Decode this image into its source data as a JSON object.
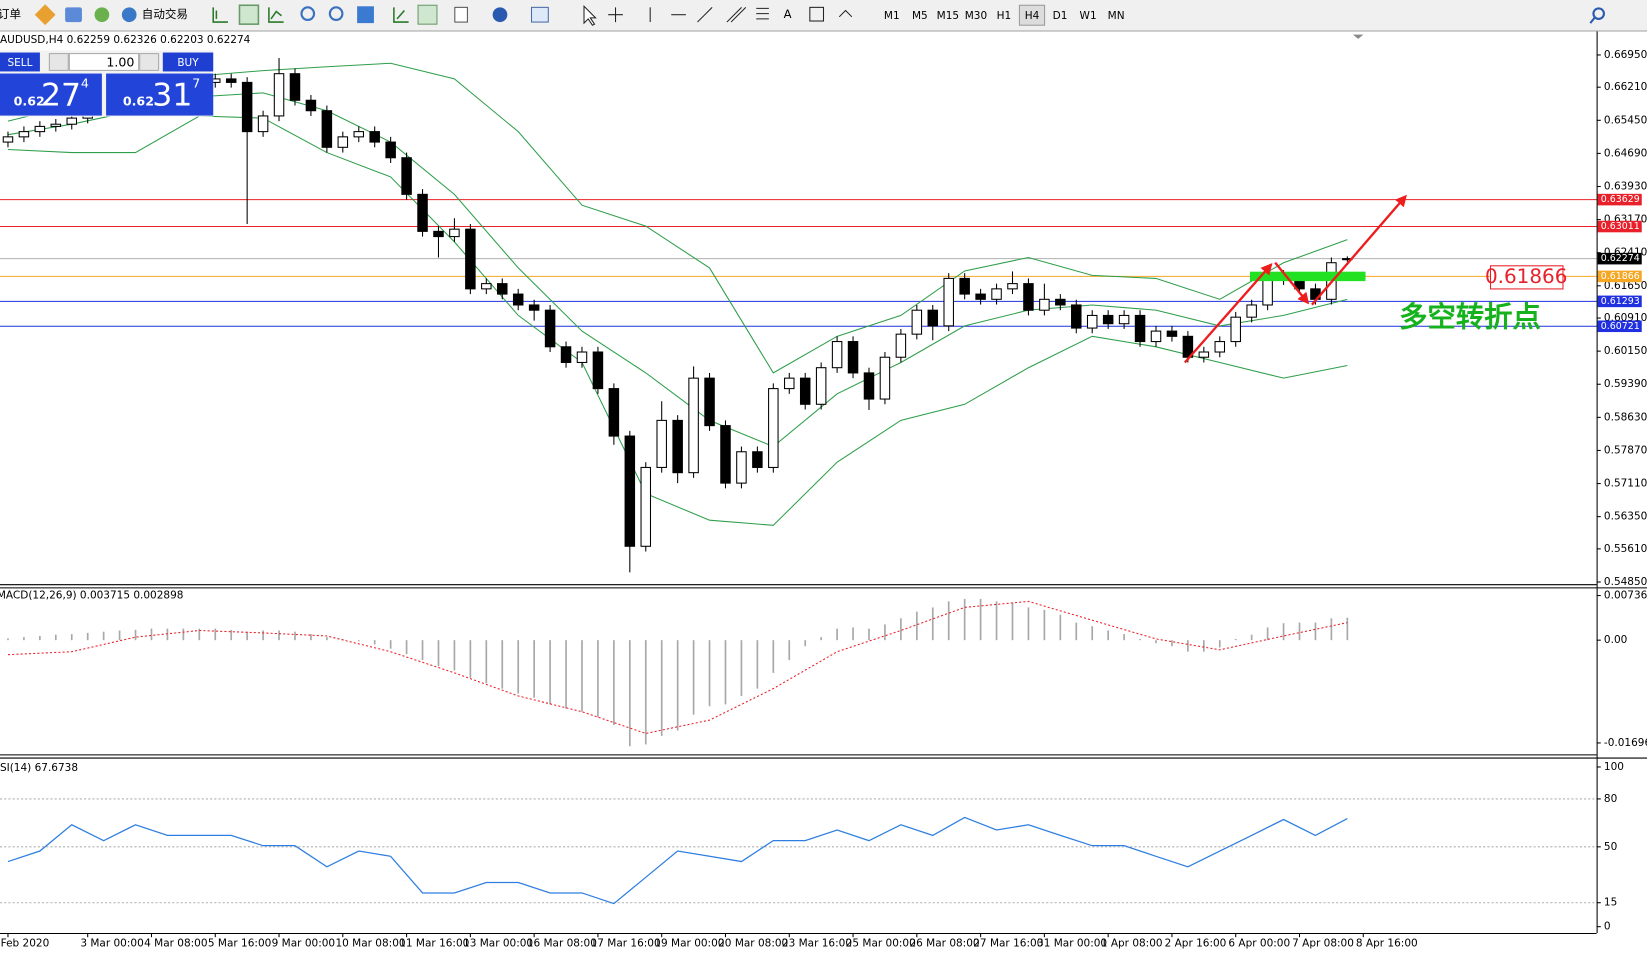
{
  "toolbar": {
    "order_button": "订单",
    "autotrade_button": "自动交易",
    "text_tool": "A",
    "timeframes": [
      "M1",
      "M5",
      "M15",
      "M30",
      "H1",
      "H4",
      "D1",
      "W1",
      "MN"
    ],
    "active_timeframe": "H4"
  },
  "one_click": {
    "sell": "SELL",
    "buy": "BUY",
    "lot": "1.00",
    "sell_price": {
      "big": "0.62",
      "pips": "27",
      "fraction": "4"
    },
    "buy_price": {
      "big": "0.62",
      "pips": "31",
      "fraction": "7"
    }
  },
  "chart_data": [
    {
      "type": "candlestick",
      "title": "AUDUSD,H4  0.62259 0.62326 0.62203 0.62274",
      "xlim": [
        -0.5,
        99.5
      ],
      "ylim": [
        0.548,
        0.6744
      ],
      "xticks": [
        {
          "value": 0,
          "label": "Feb 2020"
        },
        {
          "value": 5,
          "label": "3 Mar 00:00"
        },
        {
          "value": 9,
          "label": "4 Mar 08:00"
        },
        {
          "value": 13,
          "label": "5 Mar 16:00"
        },
        {
          "value": 17,
          "label": "9 Mar 00:00"
        },
        {
          "value": 21,
          "label": "10 Mar 08:00"
        },
        {
          "value": 25,
          "label": "11 Mar 16:00"
        },
        {
          "value": 29,
          "label": "13 Mar 00:00"
        },
        {
          "value": 33,
          "label": "16 Mar 08:00"
        },
        {
          "value": 37,
          "label": "17 Mar 16:00"
        },
        {
          "value": 41,
          "label": "19 Mar 00:00"
        },
        {
          "value": 45,
          "label": "20 Mar 08:00"
        },
        {
          "value": 49,
          "label": "23 Mar 16:00"
        },
        {
          "value": 53,
          "label": "25 Mar 00:00"
        },
        {
          "value": 57,
          "label": "26 Mar 08:00"
        },
        {
          "value": 61,
          "label": "27 Mar 16:00"
        },
        {
          "value": 65,
          "label": "31 Mar 00:00"
        },
        {
          "value": 69,
          "label": "1 Apr 08:00"
        },
        {
          "value": 73,
          "label": "2 Apr 16:00"
        },
        {
          "value": 77,
          "label": "6 Apr 00:00"
        },
        {
          "value": 81,
          "label": "7 Apr 08:00"
        },
        {
          "value": 85,
          "label": "8 Apr 16:00"
        }
      ],
      "yticks": [
        {
          "value": 0.6695,
          "label": "0.66950"
        },
        {
          "value": 0.6621,
          "label": "0.66210"
        },
        {
          "value": 0.6545,
          "label": "0.65450"
        },
        {
          "value": 0.6469,
          "label": "0.64690"
        },
        {
          "value": 0.6393,
          "label": "0.63930"
        },
        {
          "value": 0.6317,
          "label": "0.63170"
        },
        {
          "value": 0.6241,
          "label": "0.62410"
        },
        {
          "value": 0.6165,
          "label": "0.61650"
        },
        {
          "value": 0.6091,
          "label": "0.60910"
        },
        {
          "value": 0.6015,
          "label": "0.60150"
        },
        {
          "value": 0.5939,
          "label": "0.59390"
        },
        {
          "value": 0.5863,
          "label": "0.58630"
        },
        {
          "value": 0.5787,
          "label": "0.57870"
        },
        {
          "value": 0.5711,
          "label": "0.57110"
        },
        {
          "value": 0.5635,
          "label": "0.56350"
        },
        {
          "value": 0.5561,
          "label": "0.55610"
        },
        {
          "value": 0.5485,
          "label": "0.54850"
        }
      ],
      "open": [
        0.6495,
        0.6507,
        0.6519,
        0.6531,
        0.6536,
        0.655,
        0.6567,
        0.6579,
        0.6591,
        0.6603,
        0.6608,
        0.6616,
        0.6623,
        0.6632,
        0.664,
        0.6632,
        0.6519,
        0.6555,
        0.6652,
        0.6591,
        0.6567,
        0.6483,
        0.6507,
        0.6519,
        0.6495,
        0.6459,
        0.6375,
        0.629,
        0.6278,
        0.6295,
        0.6158,
        0.617,
        0.6146,
        0.6121,
        0.6109,
        0.6025,
        0.5989,
        0.6013,
        0.5929,
        0.582,
        0.5567,
        0.5748,
        0.5856,
        0.5736,
        0.5953,
        0.5844,
        0.5712,
        0.5784,
        0.5748,
        0.5929,
        0.5953,
        0.5893,
        0.5977,
        0.6037,
        0.5965,
        0.5905,
        0.6001,
        0.6054,
        0.6109,
        0.6073,
        0.6182,
        0.6146,
        0.6134,
        0.6158,
        0.617,
        0.6109,
        0.6134,
        0.6121,
        0.6068,
        0.6097,
        0.6078,
        0.6097,
        0.6037,
        0.6061,
        0.6049,
        0.6001,
        0.6013,
        0.6037,
        0.6093,
        0.6121,
        0.6189,
        0.6179,
        0.6158,
        0.6134,
        0.62259
      ],
      "high": [
        0.6519,
        0.6531,
        0.6543,
        0.6548,
        0.6562,
        0.6579,
        0.6591,
        0.6603,
        0.6615,
        0.662,
        0.6628,
        0.6635,
        0.6644,
        0.6652,
        0.6652,
        0.6644,
        0.6567,
        0.6688,
        0.6664,
        0.6603,
        0.6579,
        0.6519,
        0.6531,
        0.6531,
        0.6507,
        0.6471,
        0.6387,
        0.6302,
        0.632,
        0.6307,
        0.6182,
        0.6182,
        0.6158,
        0.6133,
        0.6121,
        0.6037,
        0.6025,
        0.6025,
        0.5941,
        0.5832,
        0.576,
        0.59,
        0.5868,
        0.598,
        0.5965,
        0.5856,
        0.5796,
        0.5796,
        0.5941,
        0.5965,
        0.5965,
        0.5989,
        0.6049,
        0.6049,
        0.5977,
        0.6013,
        0.6066,
        0.6121,
        0.6121,
        0.6194,
        0.6194,
        0.6158,
        0.617,
        0.6198,
        0.6182,
        0.617,
        0.6146,
        0.6133,
        0.6109,
        0.6109,
        0.6109,
        0.6109,
        0.6073,
        0.6073,
        0.6061,
        0.6025,
        0.6049,
        0.6105,
        0.6133,
        0.6201,
        0.6201,
        0.6191,
        0.617,
        0.623,
        0.62326
      ],
      "low": [
        0.6483,
        0.6495,
        0.6507,
        0.6519,
        0.6524,
        0.6538,
        0.6555,
        0.6567,
        0.6579,
        0.6591,
        0.6596,
        0.6604,
        0.6611,
        0.662,
        0.662,
        0.6307,
        0.6507,
        0.6543,
        0.6579,
        0.6555,
        0.6471,
        0.6471,
        0.6495,
        0.6483,
        0.6447,
        0.6363,
        0.6278,
        0.623,
        0.6266,
        0.6146,
        0.6146,
        0.6134,
        0.6109,
        0.6085,
        0.6013,
        0.5977,
        0.5977,
        0.5917,
        0.58,
        0.5507,
        0.5555,
        0.5736,
        0.5712,
        0.5724,
        0.5832,
        0.57,
        0.57,
        0.5736,
        0.5736,
        0.5917,
        0.5881,
        0.5881,
        0.5965,
        0.5953,
        0.588,
        0.5893,
        0.5989,
        0.6042,
        0.604,
        0.6061,
        0.6134,
        0.6122,
        0.6122,
        0.6146,
        0.6097,
        0.6097,
        0.6109,
        0.6056,
        0.6056,
        0.6066,
        0.6066,
        0.6025,
        0.6025,
        0.6037,
        0.5989,
        0.5989,
        0.6001,
        0.6025,
        0.6081,
        0.6109,
        0.6167,
        0.6146,
        0.6122,
        0.6122,
        0.62203
      ],
      "close": [
        0.6507,
        0.6519,
        0.6531,
        0.6536,
        0.655,
        0.6567,
        0.6579,
        0.6591,
        0.6603,
        0.6608,
        0.6616,
        0.6623,
        0.6632,
        0.664,
        0.6632,
        0.6519,
        0.6555,
        0.6652,
        0.6591,
        0.6567,
        0.6483,
        0.6507,
        0.6519,
        0.6495,
        0.6459,
        0.6375,
        0.629,
        0.6278,
        0.6295,
        0.6158,
        0.617,
        0.6146,
        0.6121,
        0.6109,
        0.6025,
        0.5989,
        0.6013,
        0.5929,
        0.582,
        0.5567,
        0.5748,
        0.5856,
        0.5736,
        0.5953,
        0.5844,
        0.5712,
        0.5784,
        0.5748,
        0.5929,
        0.5953,
        0.5893,
        0.5977,
        0.6037,
        0.5965,
        0.5905,
        0.6001,
        0.6054,
        0.6109,
        0.6073,
        0.6182,
        0.6146,
        0.6134,
        0.6158,
        0.617,
        0.6109,
        0.6134,
        0.6121,
        0.6068,
        0.6097,
        0.6078,
        0.6097,
        0.6037,
        0.6061,
        0.6049,
        0.6001,
        0.6013,
        0.6037,
        0.6093,
        0.6121,
        0.6189,
        0.6179,
        0.6158,
        0.6134,
        0.6218,
        0.62274
      ],
      "bands": {
        "color": "#2e9e4a",
        "x": [
          0,
          4,
          8,
          12,
          16,
          20,
          24,
          28,
          32,
          36,
          40,
          44,
          48,
          52,
          56,
          60,
          64,
          68,
          72,
          76,
          80,
          84
        ],
        "upper": [
          0.6543,
          0.6579,
          0.6615,
          0.6647,
          0.6659,
          0.6668,
          0.6676,
          0.664,
          0.6519,
          0.635,
          0.6302,
          0.6206,
          0.5965,
          0.6049,
          0.6097,
          0.6199,
          0.623,
          0.6189,
          0.6182,
          0.6134,
          0.6218,
          0.6271
        ],
        "middle": [
          0.6512,
          0.6536,
          0.6567,
          0.6599,
          0.6608,
          0.6567,
          0.6495,
          0.6375,
          0.6206,
          0.6061,
          0.5965,
          0.5856,
          0.5796,
          0.5917,
          0.5989,
          0.6073,
          0.6109,
          0.6121,
          0.6109,
          0.6073,
          0.6097,
          0.6134
        ],
        "lower": [
          0.6478,
          0.6471,
          0.6471,
          0.6555,
          0.655,
          0.6471,
          0.6415,
          0.6266,
          0.6097,
          0.5989,
          0.5688,
          0.5627,
          0.5615,
          0.576,
          0.5856,
          0.5893,
          0.5977,
          0.6049,
          0.6025,
          0.5989,
          0.5953,
          0.5982
        ]
      },
      "hlines": [
        {
          "value": 0.63629,
          "color": "#e8202a"
        },
        {
          "value": 0.63011,
          "color": "#e8202a"
        },
        {
          "value": 0.62274,
          "color": "#b0b0b0"
        },
        {
          "value": 0.61866,
          "color": "#f5a623"
        },
        {
          "value": 0.61293,
          "color": "#2030e0"
        },
        {
          "value": 0.60721,
          "color": "#2030e0"
        }
      ],
      "annotation": {
        "price_line": 3,
        "text": "多空转折点",
        "color": "#16b21e"
      }
    },
    {
      "type": "macd",
      "title": "MACD(12,26,9) 0.003715 0.002898",
      "ylim": [
        -0.0185,
        0.0082
      ],
      "yticks": [
        0.007363,
        {
          "value": 0,
          "label": "0.00"
        },
        -0.01696
      ],
      "histogram": {
        "color": "#a8a8a8",
        "values": [
          0.0003,
          0.0005,
          0.0007,
          0.0009,
          0.001,
          0.0012,
          0.0014,
          0.0016,
          0.0017,
          0.0019,
          0.0019,
          0.0019,
          0.0019,
          0.0019,
          0.0017,
          0.0014,
          0.0016,
          0.0016,
          0.0014,
          0.001,
          0.0005,
          0.0002,
          -0.0002,
          -0.0007,
          -0.0014,
          -0.0023,
          -0.0033,
          -0.0043,
          -0.005,
          -0.0062,
          -0.0071,
          -0.008,
          -0.0088,
          -0.0095,
          -0.0106,
          -0.0113,
          -0.0118,
          -0.0127,
          -0.014,
          -0.0175,
          -0.0172,
          -0.0158,
          -0.0149,
          -0.0123,
          -0.0109,
          -0.0106,
          -0.0092,
          -0.008,
          -0.0054,
          -0.0033,
          -0.001,
          0.0005,
          0.0019,
          0.0021,
          0.0019,
          0.0026,
          0.0036,
          0.0047,
          0.0054,
          0.0064,
          0.0068,
          0.0068,
          0.0064,
          0.0062,
          0.0054,
          0.005,
          0.0042,
          0.0029,
          0.0023,
          0.0016,
          0.001,
          0.0002,
          -0.0005,
          -0.001,
          -0.0019,
          -0.0019,
          -0.0012,
          0.0002,
          0.0009,
          0.0021,
          0.0028,
          0.0029,
          0.0029,
          0.0036,
          0.003715
        ]
      },
      "signal": {
        "color": "#e8202a",
        "x": [
          0,
          4,
          8,
          12,
          16,
          20,
          24,
          28,
          32,
          36,
          40,
          44,
          48,
          52,
          56,
          60,
          64,
          68,
          72,
          76,
          80,
          84
        ],
        "values": [
          -0.0024,
          -0.0019,
          0.0005,
          0.0016,
          0.0012,
          0.0007,
          -0.0019,
          -0.0054,
          -0.0092,
          -0.0118,
          -0.0154,
          -0.0132,
          -0.008,
          -0.0019,
          0.0016,
          0.0054,
          0.0064,
          0.0033,
          0.0002,
          -0.0016,
          0.0007,
          0.002898
        ]
      }
    },
    {
      "type": "rsi",
      "title": "RSI(14) 67.6738",
      "ylim": [
        0,
        100
      ],
      "yticks": [
        100,
        80,
        50,
        15,
        0
      ],
      "series": {
        "color": "#2f7fe0",
        "x": [
          0,
          2,
          4,
          6,
          8,
          10,
          12,
          14,
          16,
          18,
          20,
          22,
          24,
          26,
          28,
          30,
          32,
          34,
          36,
          38,
          40,
          42,
          44,
          46,
          48,
          50,
          52,
          54,
          56,
          58,
          60,
          62,
          64,
          66,
          68,
          70,
          72,
          74,
          76,
          78,
          80,
          82,
          84
        ],
        "values": [
          40.8,
          47.4,
          63.8,
          53.9,
          63.8,
          57.2,
          57.2,
          57.2,
          50.7,
          50.7,
          37.5,
          47.4,
          44.1,
          21.1,
          21.1,
          27.6,
          27.6,
          21.1,
          21.1,
          14.5,
          30.9,
          47.4,
          44.1,
          40.8,
          53.9,
          53.9,
          60.5,
          53.9,
          63.8,
          57.2,
          68.4,
          60.5,
          63.8,
          57.2,
          50.7,
          50.7,
          44.1,
          37.5,
          47.4,
          57.2,
          67.1,
          57.2,
          67.6738
        ]
      }
    }
  ]
}
